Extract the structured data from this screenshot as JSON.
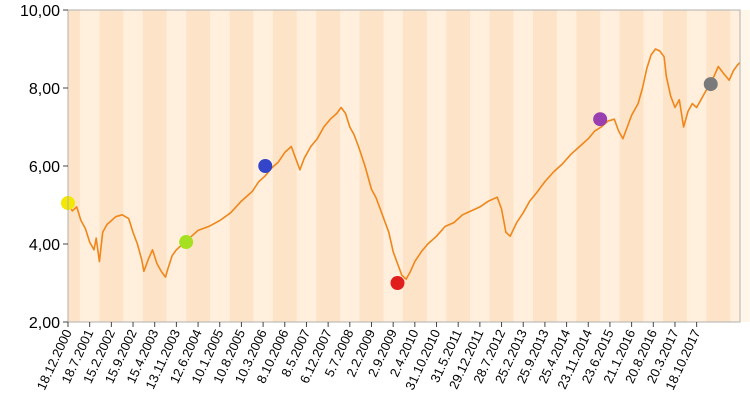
{
  "chart_data": {
    "type": "line",
    "title": "",
    "xlabel": "",
    "ylabel": "",
    "ylim": [
      2,
      10
    ],
    "yticks": [
      "2,00",
      "4,00",
      "6,00",
      "8,00",
      "10,00"
    ],
    "ytick_values": [
      2,
      4,
      6,
      8,
      10
    ],
    "grid": "vertical stripes",
    "colors": {
      "line": "#f0861a",
      "plot_bg": "#fde4c8",
      "stripe": "#fff3e3",
      "frame": "#b0b0b0"
    },
    "x_categories": [
      "18.12.2000",
      "18.7.2001",
      "15.2.2002",
      "15.9.2002",
      "15.4.2003",
      "13.11.2003",
      "12.6.2004",
      "10.1.2005",
      "10.8.2005",
      "10.3.2006",
      "8.10.2006",
      "8.5.2007",
      "6.12.2007",
      "5.7.2008",
      "2.2.2009",
      "2.9.2009",
      "2.4.2010",
      "31.10.2010",
      "31.5.2011",
      "29.12.2011",
      "28.7.2012",
      "25.2.2013",
      "25.9.2013",
      "25.4.2014",
      "23.11.2014",
      "23.6.2015",
      "21.1.2016",
      "20.8.2016",
      "20.3.2017",
      "18.10.2017"
    ],
    "series": [
      {
        "values": [
          [
            0,
            5.05
          ],
          [
            0.2,
            4.85
          ],
          [
            0.4,
            4.95
          ],
          [
            0.6,
            4.6
          ],
          [
            0.8,
            4.4
          ],
          [
            1.0,
            4.05
          ],
          [
            1.2,
            3.85
          ],
          [
            1.3,
            4.15
          ],
          [
            1.45,
            3.55
          ],
          [
            1.6,
            4.3
          ],
          [
            1.8,
            4.5
          ],
          [
            2.0,
            4.6
          ],
          [
            2.2,
            4.7
          ],
          [
            2.5,
            4.75
          ],
          [
            2.8,
            4.65
          ],
          [
            3.0,
            4.3
          ],
          [
            3.2,
            4.0
          ],
          [
            3.4,
            3.6
          ],
          [
            3.5,
            3.3
          ],
          [
            3.7,
            3.6
          ],
          [
            3.9,
            3.85
          ],
          [
            4.1,
            3.5
          ],
          [
            4.3,
            3.3
          ],
          [
            4.5,
            3.15
          ],
          [
            4.6,
            3.35
          ],
          [
            4.8,
            3.7
          ],
          [
            5.0,
            3.85
          ],
          [
            5.2,
            3.95
          ],
          [
            5.4,
            4.05
          ],
          [
            5.7,
            4.2
          ],
          [
            6.0,
            4.35
          ],
          [
            6.5,
            4.45
          ],
          [
            7.0,
            4.6
          ],
          [
            7.5,
            4.8
          ],
          [
            8.0,
            5.1
          ],
          [
            8.5,
            5.35
          ],
          [
            8.8,
            5.6
          ],
          [
            9.1,
            5.75
          ],
          [
            9.4,
            5.95
          ],
          [
            9.7,
            6.1
          ],
          [
            10.0,
            6.35
          ],
          [
            10.3,
            6.5
          ],
          [
            10.5,
            6.2
          ],
          [
            10.7,
            5.9
          ],
          [
            10.9,
            6.2
          ],
          [
            11.2,
            6.5
          ],
          [
            11.5,
            6.7
          ],
          [
            11.8,
            7.0
          ],
          [
            12.1,
            7.2
          ],
          [
            12.4,
            7.35
          ],
          [
            12.6,
            7.5
          ],
          [
            12.8,
            7.35
          ],
          [
            13.0,
            7.0
          ],
          [
            13.2,
            6.8
          ],
          [
            13.4,
            6.5
          ],
          [
            13.7,
            6.0
          ],
          [
            14.0,
            5.4
          ],
          [
            14.2,
            5.2
          ],
          [
            14.4,
            4.9
          ],
          [
            14.6,
            4.6
          ],
          [
            14.8,
            4.3
          ],
          [
            15.0,
            3.8
          ],
          [
            15.2,
            3.5
          ],
          [
            15.4,
            3.2
          ],
          [
            15.6,
            3.1
          ],
          [
            15.8,
            3.3
          ],
          [
            16.0,
            3.55
          ],
          [
            16.3,
            3.8
          ],
          [
            16.6,
            4.0
          ],
          [
            17.0,
            4.2
          ],
          [
            17.4,
            4.45
          ],
          [
            17.8,
            4.55
          ],
          [
            18.2,
            4.75
          ],
          [
            18.6,
            4.85
          ],
          [
            19.0,
            4.95
          ],
          [
            19.4,
            5.1
          ],
          [
            19.8,
            5.2
          ],
          [
            20.0,
            4.9
          ],
          [
            20.2,
            4.3
          ],
          [
            20.4,
            4.2
          ],
          [
            20.7,
            4.55
          ],
          [
            21.0,
            4.8
          ],
          [
            21.3,
            5.1
          ],
          [
            21.6,
            5.3
          ],
          [
            22.0,
            5.6
          ],
          [
            22.4,
            5.85
          ],
          [
            22.8,
            6.05
          ],
          [
            23.2,
            6.3
          ],
          [
            23.6,
            6.5
          ],
          [
            24.0,
            6.7
          ],
          [
            24.3,
            6.9
          ],
          [
            24.6,
            7.0
          ],
          [
            24.9,
            7.15
          ],
          [
            25.2,
            7.2
          ],
          [
            25.4,
            6.9
          ],
          [
            25.6,
            6.7
          ],
          [
            25.8,
            7.0
          ],
          [
            26.0,
            7.3
          ],
          [
            26.3,
            7.6
          ],
          [
            26.5,
            8.0
          ],
          [
            26.7,
            8.5
          ],
          [
            26.9,
            8.85
          ],
          [
            27.1,
            9.0
          ],
          [
            27.3,
            8.95
          ],
          [
            27.5,
            8.8
          ],
          [
            27.6,
            8.3
          ],
          [
            27.8,
            7.8
          ],
          [
            28.0,
            7.5
          ],
          [
            28.2,
            7.7
          ],
          [
            28.4,
            7.0
          ],
          [
            28.6,
            7.4
          ],
          [
            28.8,
            7.6
          ],
          [
            29.0,
            7.5
          ],
          [
            29.2,
            7.7
          ],
          [
            29.4,
            7.9
          ],
          [
            29.6,
            8.1
          ],
          [
            29.8,
            8.3
          ],
          [
            30.0,
            8.55
          ],
          [
            30.2,
            8.4
          ],
          [
            30.5,
            8.2
          ],
          [
            30.7,
            8.45
          ],
          [
            30.9,
            8.6
          ],
          [
            31.0,
            8.65
          ]
        ]
      }
    ],
    "markers": [
      {
        "x": 0,
        "y": 5.05,
        "color": "#f4e800"
      },
      {
        "x": 5.45,
        "y": 4.05,
        "color": "#a6e022"
      },
      {
        "x": 9.1,
        "y": 6.0,
        "color": "#3345c8"
      },
      {
        "x": 15.2,
        "y": 3.0,
        "color": "#e01e1e"
      },
      {
        "x": 24.55,
        "y": 7.2,
        "color": "#9a3fb0"
      },
      {
        "x": 29.65,
        "y": 8.1,
        "color": "#7a7a7a"
      }
    ]
  }
}
